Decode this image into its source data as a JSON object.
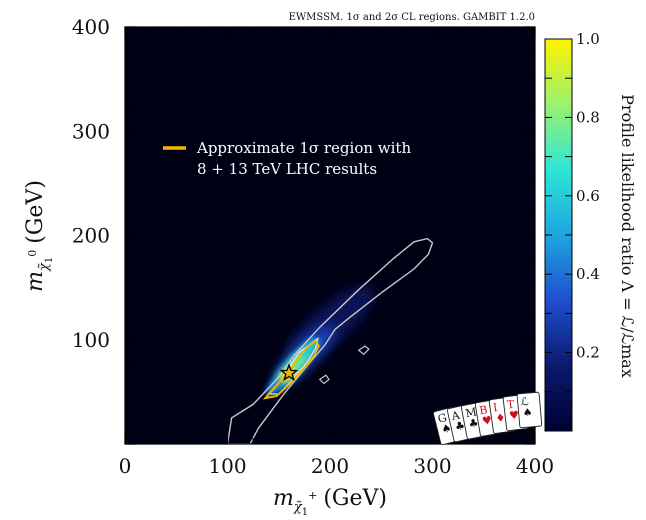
{
  "chart_data": {
    "type": "heatmap",
    "title": "EWMSSM. 1σ and 2σ CL regions. GAMBIT 1.2.0",
    "xlabel": "mχ̃₁⁺ (GeV)",
    "xlabel_parts": {
      "prefix": "m",
      "sub": "χ̃",
      "subsub": "1",
      "sup": "+",
      "unit": "(GeV)"
    },
    "ylabel": "mχ̃₁⁰ (GeV)",
    "ylabel_parts": {
      "prefix": "m",
      "sub": "χ̃",
      "subsub": "1",
      "sup": "0",
      "unit": "(GeV)"
    },
    "xlim": [
      0,
      400
    ],
    "ylim": [
      0,
      400
    ],
    "xticks": [
      "0",
      "100",
      "200",
      "300",
      "400"
    ],
    "yticks": [
      "100",
      "200",
      "300",
      "400"
    ],
    "colorbar": {
      "label": "Profile likelihood ratio Λ = ℒ/ℒmax",
      "range": [
        0,
        1
      ],
      "ticks": [
        "0.2",
        "0.4",
        "0.6",
        "0.8",
        "1.0"
      ],
      "colormap": [
        "#000033",
        "#0a1a6e",
        "#1f4fd0",
        "#1da6e0",
        "#2ee6d6",
        "#9af26e",
        "#fff200"
      ]
    },
    "legend": {
      "position": "upper-left",
      "entries": [
        {
          "text_lines": [
            "Approximate 1σ region with",
            "8 + 13 TeV LHC results"
          ],
          "color": "#f5b400"
        }
      ]
    },
    "best_fit": {
      "x": 160,
      "y": 68,
      "marker": "star"
    },
    "contours": {
      "two_sigma_color": "#c8c8c8",
      "two_sigma": [
        [
          100,
          0
        ],
        [
          104,
          25
        ],
        [
          125,
          38
        ],
        [
          148,
          62
        ],
        [
          158,
          75
        ],
        [
          165,
          85
        ],
        [
          190,
          112
        ],
        [
          228,
          148
        ],
        [
          262,
          178
        ],
        [
          282,
          194
        ],
        [
          295,
          197
        ],
        [
          300,
          193
        ],
        [
          296,
          182
        ],
        [
          282,
          168
        ],
        [
          250,
          145
        ],
        [
          220,
          122
        ],
        [
          205,
          110
        ],
        [
          195,
          95
        ],
        [
          175,
          72
        ],
        [
          155,
          48
        ],
        [
          130,
          15
        ],
        [
          122,
          0
        ]
      ],
      "one_sigma": [
        [
          140,
          48
        ],
        [
          148,
          56
        ],
        [
          156,
          66
        ],
        [
          162,
          76
        ],
        [
          170,
          88
        ],
        [
          180,
          95
        ],
        [
          188,
          101
        ],
        [
          186,
          92
        ],
        [
          180,
          82
        ],
        [
          174,
          74
        ],
        [
          168,
          68
        ],
        [
          160,
          58
        ],
        [
          150,
          48
        ]
      ],
      "approx_one_sigma_color": "#f5b400",
      "approx_one_sigma": [
        [
          137,
          44
        ],
        [
          146,
          54
        ],
        [
          154,
          63
        ],
        [
          162,
          72
        ],
        [
          170,
          84
        ],
        [
          178,
          93
        ],
        [
          186,
          99
        ],
        [
          189,
          94
        ],
        [
          184,
          84
        ],
        [
          176,
          74
        ],
        [
          168,
          66
        ],
        [
          160,
          57
        ],
        [
          148,
          46
        ]
      ],
      "islands": [
        [
          [
            228,
            90
          ],
          [
            234,
            94
          ],
          [
            238,
            91
          ],
          [
            233,
            86
          ]
        ],
        [
          [
            190,
            62
          ],
          [
            196,
            66
          ],
          [
            199,
            62
          ],
          [
            194,
            58
          ]
        ]
      ]
    },
    "heat_blobs": [
      {
        "x": 200,
        "y": 115,
        "rx": 55,
        "ry": 18,
        "angle": -40,
        "value": 0.12
      },
      {
        "x": 175,
        "y": 85,
        "rx": 40,
        "ry": 12,
        "angle": -45,
        "value": 0.3
      },
      {
        "x": 162,
        "y": 72,
        "rx": 28,
        "ry": 9,
        "angle": -48,
        "value": 0.5
      },
      {
        "x": 168,
        "y": 78,
        "rx": 18,
        "ry": 7,
        "angle": -50,
        "value": 0.75
      },
      {
        "x": 158,
        "y": 66,
        "rx": 10,
        "ry": 6,
        "angle": -45,
        "value": 0.95
      },
      {
        "x": 180,
        "y": 92,
        "rx": 12,
        "ry": 6,
        "angle": -48,
        "value": 0.6
      },
      {
        "x": 145,
        "y": 54,
        "rx": 10,
        "ry": 5,
        "angle": -45,
        "value": 0.45
      }
    ]
  },
  "logo": {
    "cards": [
      "G",
      "A",
      "M",
      "B",
      "I",
      "T",
      "ℒ"
    ]
  }
}
